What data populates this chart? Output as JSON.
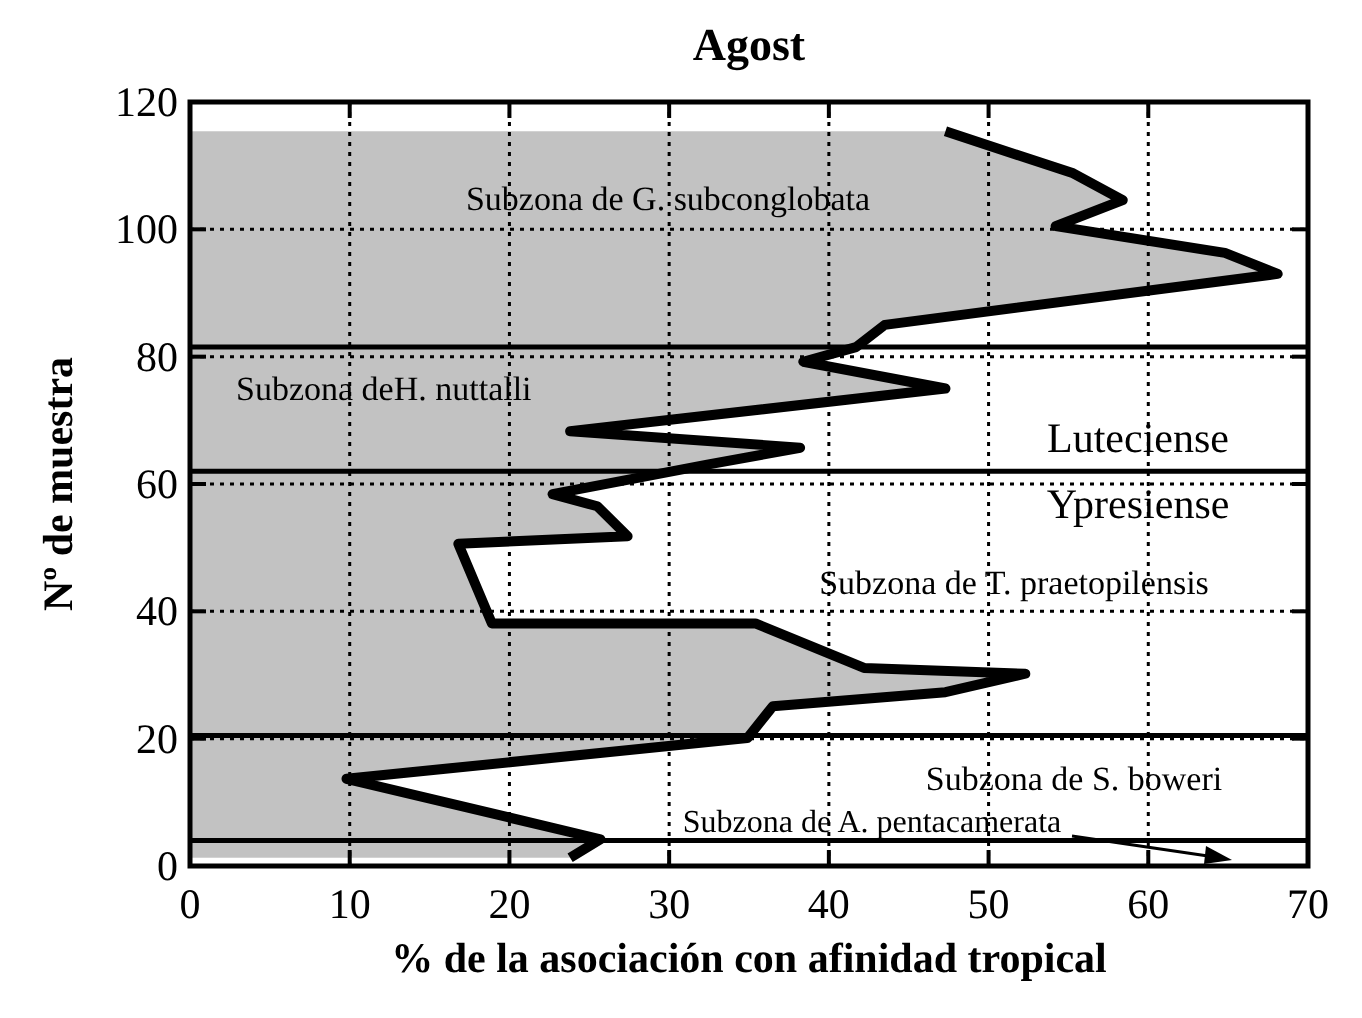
{
  "chart_data": {
    "type": "area",
    "orientation": "horizontal",
    "title": "Agost",
    "xlabel": "% de la asociación con afinidad tropical",
    "ylabel": "Nº de muestra",
    "xlim": [
      0,
      70
    ],
    "xticks": [
      0,
      10,
      20,
      30,
      40,
      50,
      60,
      70
    ],
    "ylim": [
      0,
      120
    ],
    "yticks": [
      0,
      20,
      40,
      60,
      80,
      100,
      120
    ],
    "grid": true,
    "series": [
      {
        "color": "#000000",
        "values": [
          47.3,
          55.3,
          58.4,
          54.2,
          64.8,
          68.1,
          43.5,
          41.7,
          38.4,
          47.3,
          23.8,
          38.2,
          32.3,
          22.7,
          25.5,
          27.4,
          16.8,
          18.9,
          35.4,
          42.2,
          52.3,
          47.3,
          36.5,
          34.9,
          9.8,
          25.7,
          23.8
        ],
        "x": [
          115.4,
          108.8,
          104.6,
          100.5,
          96.3,
          93,
          85,
          81.5,
          79.2,
          75,
          68.3,
          65.7,
          63,
          58.4,
          56.5,
          51.8,
          50.6,
          38.1,
          38.1,
          31.1,
          30.2,
          27.3,
          25.1,
          20.1,
          13.7,
          4.2,
          1.3
        ]
      }
    ],
    "ref_lines": [
      {
        "axis": "y",
        "value": 81.5
      },
      {
        "axis": "y",
        "value": 62
      },
      {
        "axis": "y",
        "value": 20.5
      },
      {
        "axis": "y",
        "value": 4
      }
    ],
    "annotations": [
      "Subzona de G. subconglobata",
      "Subzona deH. nuttalli",
      "Luteciense",
      "Ypresiense",
      "Subzona de T. praetopilensis",
      "Subzona de S. boweri",
      "Subzona de A. pentacamerata"
    ]
  }
}
